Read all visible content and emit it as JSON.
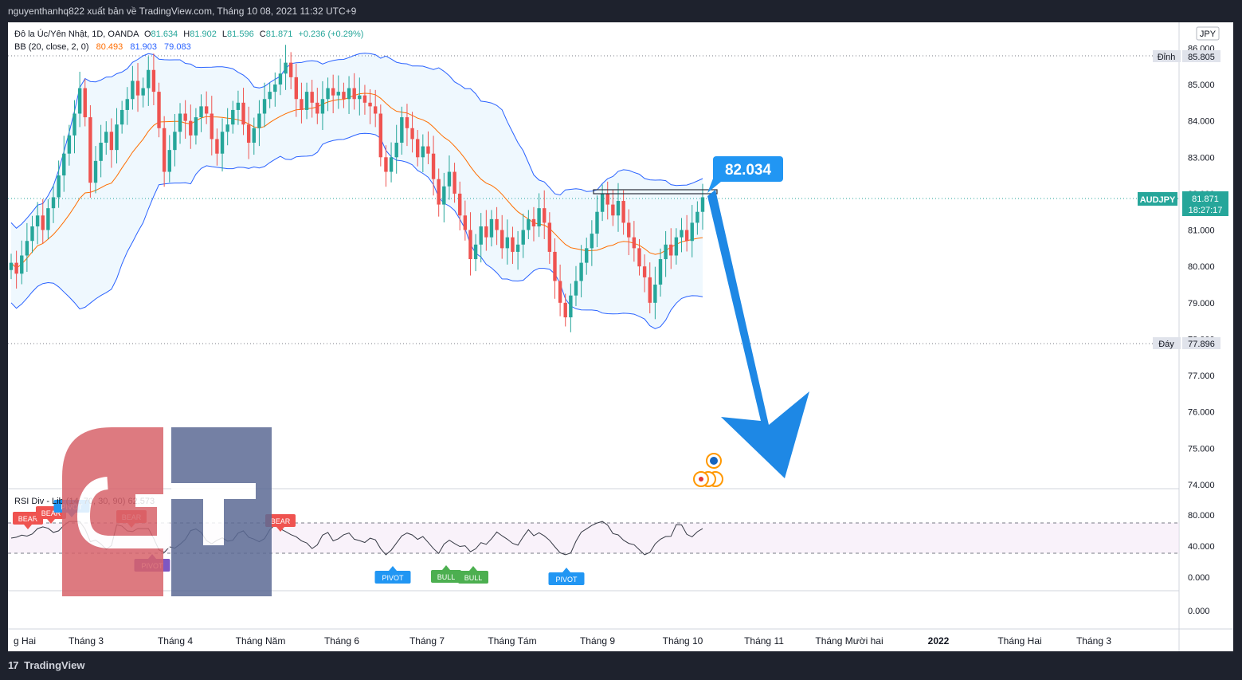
{
  "header": {
    "publisher": "nguyenthanhq822 xuất bản về TradingView.com, Tháng 10 08, 2021 11:32 UTC+9"
  },
  "legend": {
    "symbol_line": "Đô la Úc/Yên Nhật, 1D, OANDA",
    "ohlc": {
      "o_label": "O",
      "o_value": "81.634",
      "h_label": "H",
      "h_value": "81.902",
      "l_label": "L",
      "l_value": "81.596",
      "c_label": "C",
      "c_value": "81.871",
      "change": "+0.236 (+0.29%)"
    },
    "bb_label": "BB (20, close, 2, 0)",
    "bb_basis": "80.493",
    "bb_upper": "81.903",
    "bb_lower": "79.083"
  },
  "price_axis": {
    "currency": "JPY",
    "ticks": [
      "86.000",
      "85.000",
      "84.000",
      "83.000",
      "82.000",
      "81.000",
      "80.000",
      "79.000",
      "78.000",
      "77.000",
      "76.000",
      "75.000",
      "74.000"
    ],
    "high_label": "Đỉnh",
    "high_value": "85.805",
    "low_label": "Đáy",
    "low_value": "77.896",
    "symbol_tag": "AUDJPY",
    "last_price": "81.871",
    "countdown": "18:27:17"
  },
  "annotation": {
    "callout": "82.034"
  },
  "rsi_panel": {
    "legend": "RSI Div - Lib (14, 70, 30, 90) 62.573",
    "ticks": [
      "80.000",
      "40.000",
      "0.000"
    ],
    "lower_tick": "0.000",
    "labels": [
      {
        "text": "BEAR",
        "color": "#ef5350"
      },
      {
        "text": "BEAR",
        "color": "#ef5350"
      },
      {
        "text": "PIVOT",
        "color": "#2196f3"
      },
      {
        "text": "BEAR",
        "color": "#ef5350"
      },
      {
        "text": "PIVOT",
        "color": "#7e57c2"
      },
      {
        "text": "BEAR",
        "color": "#ef5350"
      },
      {
        "text": "PIVOT",
        "color": "#2196f3"
      },
      {
        "text": "BULL",
        "color": "#4caf50"
      },
      {
        "text": "BULL",
        "color": "#4caf50"
      },
      {
        "text": "PIVOT",
        "color": "#2196f3"
      }
    ]
  },
  "time_axis": {
    "labels": [
      "g Hai",
      "Tháng 3",
      "Tháng 4",
      "Tháng Năm",
      "Tháng 6",
      "Tháng 7",
      "Tháng Tám",
      "Tháng 9",
      "Tháng 10",
      "Tháng 11",
      "Tháng Mười hai",
      "2022",
      "Tháng Hai",
      "Tháng 3"
    ]
  },
  "footer": {
    "brand": "TradingView",
    "brand_mark": "17"
  },
  "watermark": {
    "letters": "GT"
  },
  "colors": {
    "up": "#26a69a",
    "down": "#ef5350",
    "bb_band": "#2962ff",
    "bb_basis": "#ff6d00",
    "arrow": "#1e88e5",
    "rsi_line": "#363a45"
  },
  "chart_data": {
    "type": "candlestick",
    "title": "Đô la Úc/Yên Nhật, 1D, OANDA",
    "ylim": [
      73.6,
      86.2
    ],
    "x_months": [
      "Feb 2021",
      "Mar",
      "Apr",
      "May",
      "Jun",
      "Jul",
      "Aug",
      "Sep",
      "Oct"
    ],
    "closes": [
      80.1,
      79.8,
      80.3,
      80.7,
      81.1,
      81.4,
      81.0,
      81.6,
      81.9,
      82.5,
      83.1,
      83.6,
      84.2,
      84.9,
      84.1,
      82.3,
      82.9,
      83.4,
      83.7,
      83.2,
      83.9,
      84.3,
      84.6,
      85.1,
      84.7,
      84.9,
      85.4,
      84.8,
      83.8,
      82.6,
      83.2,
      83.7,
      84.2,
      84.0,
      83.6,
      84.1,
      84.4,
      84.2,
      83.5,
      83.1,
      83.7,
      83.9,
      84.3,
      84.5,
      83.9,
      83.4,
      83.8,
      84.2,
      84.6,
      84.8,
      85.0,
      85.3,
      85.6,
      85.2,
      84.6,
      84.3,
      84.8,
      84.5,
      84.2,
      84.6,
      84.9,
      84.7,
      84.8,
      84.6,
      84.9,
      84.6,
      84.7,
      84.5,
      84.4,
      84.2,
      83.0,
      82.6,
      83.0,
      83.4,
      84.1,
      83.8,
      83.5,
      83.0,
      83.3,
      83.1,
      82.4,
      81.7,
      82.2,
      82.6,
      82.0,
      81.4,
      81.0,
      80.2,
      80.6,
      81.1,
      80.8,
      81.3,
      81.0,
      80.5,
      80.8,
      80.4,
      80.6,
      81.0,
      81.3,
      81.1,
      81.6,
      81.2,
      80.4,
      79.6,
      79.0,
      78.6,
      79.2,
      79.6,
      80.1,
      80.5,
      80.9,
      81.5,
      82.0,
      81.7,
      81.4,
      81.8,
      81.2,
      80.8,
      80.5,
      80.0,
      79.7,
      79.0,
      79.5,
      80.2,
      80.6,
      80.3,
      80.8,
      81.0,
      80.7,
      81.2,
      81.5,
      81.9
    ],
    "bb_upper_end": 81.903,
    "bb_basis_end": 80.493,
    "bb_lower_end": 79.083,
    "range_high": 85.805,
    "range_low": 77.896,
    "last": 81.871,
    "resistance": 82.034,
    "rsi": {
      "overbought": 70,
      "oversold": 30,
      "last": 62.573,
      "ylim": [
        0,
        100
      ]
    }
  }
}
